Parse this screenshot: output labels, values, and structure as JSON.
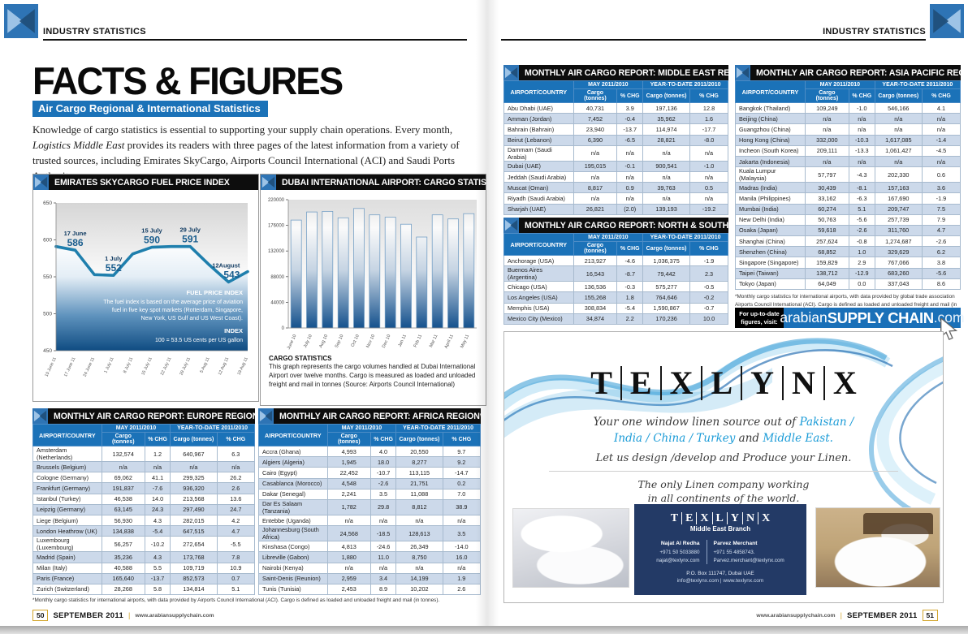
{
  "header": {
    "left": "INDUSTRY STATISTICS",
    "right": "INDUSTRY STATISTICS"
  },
  "page_title": "FACTS & FIGURES",
  "page_subtitle": "Air Cargo Regional & International Statistics",
  "intro_segments": [
    {
      "t": "Knowledge of cargo statistics is essential to supporting your supply chain operations. Every month, ",
      "c": "n"
    },
    {
      "t": "Logistics Middle East",
      "c": "i"
    },
    {
      "t": " provides its readers with three pages of the latest information from a variety of trusted sources, including Emirates SkyCargo, Airports Council International (ACI) and Saudi Ports Authority.",
      "c": "n"
    }
  ],
  "chart_data": [
    {
      "type": "line",
      "title": "EMIRATES SKYCARGO FUEL PRICE INDEX",
      "x": [
        "10 June 11",
        "17 June 11",
        "24 June 11",
        "1 July 11",
        "8 July 11",
        "15 July 11",
        "22 July 11",
        "29 July 11",
        "5 Aug 11",
        "12 Aug 11",
        "19 Aug 11"
      ],
      "values": [
        591,
        586,
        553,
        552,
        581,
        590,
        591,
        591,
        566,
        543,
        557
      ],
      "ylim": [
        450,
        650
      ],
      "yticks": [
        450,
        500,
        550,
        600,
        650
      ],
      "point_labels": [
        {
          "idx": 1,
          "date": "17 June",
          "value": "586"
        },
        {
          "idx": 3,
          "date": "1 July",
          "value": "552"
        },
        {
          "idx": 5,
          "date": "15 July",
          "value": "590"
        },
        {
          "idx": 7,
          "date": "29 July",
          "value": "591"
        },
        {
          "idx": 9,
          "date": "12August",
          "value": "543"
        }
      ],
      "note_heading": "FUEL PRICE INDEX",
      "note_lines": [
        "The fuel index is based on the average price of aviation",
        "fuel in five key spot markets (Rotterdam, Singapore,",
        "New York, US Gulf and US West Coast)."
      ],
      "index_heading": "INDEX",
      "index_line": "100 = 53.5 US cents per US gallon"
    },
    {
      "type": "bar",
      "title": "DUBAI INTERNATIONAL AIRPORT: CARGO STATISTICS",
      "categories": [
        "June 10",
        "July 10",
        "Aug 10",
        "Sep 10",
        "Oct 10",
        "Nov 10",
        "Dec 10",
        "Jan 11",
        "Feb 11",
        "Mar 11",
        "April 11",
        "May 11"
      ],
      "values": [
        185000,
        199000,
        200000,
        189000,
        205000,
        194000,
        190000,
        178000,
        156000,
        194000,
        187000,
        196000
      ],
      "ylim": [
        0,
        220000
      ],
      "yticks": [
        0,
        44000,
        88000,
        132000,
        176000,
        220000
      ],
      "caption_heading": "CARGO STATISTICS",
      "caption": "This graph represents the cargo volumes handled at Dubai International Airport over twelve months. Cargo is measured as loaded and unloaded freight and mail in tonnes (Source: Airports Council International)"
    }
  ],
  "tables": {
    "europe": {
      "title": "MONTHLY AIR CARGO REPORT: EUROPE REGION*",
      "name_header": "AIRPORT/COUNTRY",
      "group_headers": [
        "MAY 2011/2010",
        "YEAR-TO-DATE 2011/2010"
      ],
      "sub_headers": [
        "Cargo (tonnes)",
        "% CHG",
        "Cargo (tonnes)",
        "% CHG"
      ],
      "rows": [
        [
          "Amsterdam (Netherlands)",
          "132,574",
          "1.2",
          "640,967",
          "6.3"
        ],
        [
          "Brussels (Belgium)",
          "n/a",
          "n/a",
          "n/a",
          "n/a"
        ],
        [
          "Cologne (Germany)",
          "69,062",
          "41.1",
          "299,325",
          "26.2"
        ],
        [
          "Frankfurt (Germany)",
          "191,837",
          "-7.6",
          "936,320",
          "2.6"
        ],
        [
          "Istanbul (Turkey)",
          "46,538",
          "14.0",
          "213,568",
          "13.6"
        ],
        [
          "Leipzig (Germany)",
          "63,145",
          "24.3",
          "297,490",
          "24.7"
        ],
        [
          "Liege (Belgium)",
          "56,930",
          "4.3",
          "282,015",
          "4.2"
        ],
        [
          "London Heathrow (UK)",
          "134,838",
          "-5.4",
          "647,515",
          "4.7"
        ],
        [
          "Luxembourg (Luxembourg)",
          "56,257",
          "-10.2",
          "272,654",
          "-5.5"
        ],
        [
          "Madrid (Spain)",
          "35,236",
          "4.3",
          "173,768",
          "7.8"
        ],
        [
          "Milan (Italy)",
          "40,588",
          "5.5",
          "109,719",
          "10.9"
        ],
        [
          "Paris (France)",
          "165,640",
          "-13.7",
          "852,573",
          "0.7"
        ],
        [
          "Zurich (Switzerland)",
          "28,268",
          "5.8",
          "134,814",
          "5.1"
        ]
      ]
    },
    "africa": {
      "title": "MONTHLY AIR CARGO REPORT: AFRICA REGION*",
      "name_header": "AIRPORT/COUNTRY",
      "group_headers": [
        "MAY 2011/2010",
        "YEAR-TO-DATE 2011/2010"
      ],
      "sub_headers": [
        "Cargo (tonnes)",
        "% CHG",
        "Cargo (tonnes)",
        "% CHG"
      ],
      "rows": [
        [
          "Accra (Ghana)",
          "4,993",
          "4.0",
          "20,550",
          "9.7"
        ],
        [
          "Algiers (Algeria)",
          "1,945",
          "18.0",
          "8,277",
          "9.2"
        ],
        [
          "Cairo (Egypt)",
          "22,452",
          "-10.7",
          "113,115",
          "-14.7"
        ],
        [
          "Casablanca (Morocco)",
          "4,548",
          "-2.6",
          "21,751",
          "0.2"
        ],
        [
          "Dakar (Senegal)",
          "2,241",
          "3.5",
          "11,088",
          "7.0"
        ],
        [
          "Dar Es Salaam (Tanzania)",
          "1,782",
          "29.8",
          "8,812",
          "38.9"
        ],
        [
          "Entebbe (Uganda)",
          "n/a",
          "n/a",
          "n/a",
          "n/a"
        ],
        [
          "Johannesburg (South Africa)",
          "24,568",
          "-18.5",
          "128,613",
          "3.5"
        ],
        [
          "Kinshasa (Congo)",
          "4,813",
          "-24.6",
          "26,349",
          "-14.0"
        ],
        [
          "Libreville (Gabon)",
          "1,880",
          "11.0",
          "8,750",
          "16.0"
        ],
        [
          "Nairobi (Kenya)",
          "n/a",
          "n/a",
          "n/a",
          "n/a"
        ],
        [
          "Saint-Denis (Reunion)",
          "2,959",
          "3.4",
          "14,199",
          "1.9"
        ],
        [
          "Tunis (Tunisia)",
          "2,453",
          "8.9",
          "10,202",
          "2.6"
        ]
      ]
    },
    "middle_east": {
      "title": "MONTHLY AIR CARGO REPORT: MIDDLE EAST REGION*",
      "name_header": "AIRPORT/COUNTRY",
      "group_headers": [
        "MAY 2011/2010",
        "YEAR-TO-DATE 2011/2010"
      ],
      "sub_headers": [
        "Cargo (tonnes)",
        "% CHG",
        "Cargo (tonnes)",
        "% CHG"
      ],
      "rows": [
        [
          "Abu Dhabi (UAE)",
          "40,731",
          "3.9",
          "197,136",
          "12.8"
        ],
        [
          "Amman (Jordan)",
          "7,452",
          "-0.4",
          "35,962",
          "1.6"
        ],
        [
          "Bahrain (Bahrain)",
          "23,940",
          "-13.7",
          "114,974",
          "-17.7"
        ],
        [
          "Beirut (Lebanon)",
          "6,390",
          "-6.5",
          "28,821",
          "-8.0"
        ],
        [
          "Dammam (Saudi Arabia)",
          "n/a",
          "n/a",
          "n/a",
          "n/a"
        ],
        [
          "Dubai (UAE)",
          "195,015",
          "-0.1",
          "900,541",
          "-1.0"
        ],
        [
          "Jeddah (Saudi Arabia)",
          "n/a",
          "n/a",
          "n/a",
          "n/a"
        ],
        [
          "Muscat (Oman)",
          "8,817",
          "0.9",
          "39,763",
          "0.5"
        ],
        [
          "Riyadh (Saudi Arabia)",
          "n/a",
          "n/a",
          "n/a",
          "n/a"
        ],
        [
          "Sharjah (UAE)",
          "26,821",
          "(2.0)",
          "139,193",
          "-19.2"
        ]
      ]
    },
    "americas": {
      "title": "MONTHLY AIR CARGO REPORT: NORTH & SOUTH AMERICA*",
      "name_header": "AIRPORT/COUNTRY",
      "group_headers": [
        "MAY 2011/2010",
        "YEAR-TO-DATE 2011/2010"
      ],
      "sub_headers": [
        "Cargo (tonnes)",
        "% CHG",
        "Cargo (tonnes)",
        "% CHG"
      ],
      "rows": [
        [
          "Anchorage (USA)",
          "213,927",
          "-4.6",
          "1,036,375",
          "-1.9"
        ],
        [
          "Buenos Aires (Argentina)",
          "16,543",
          "-8.7",
          "79,442",
          "2.3"
        ],
        [
          "Chicago (USA)",
          "136,536",
          "-0.3",
          "575,277",
          "-0.5"
        ],
        [
          "Los Angeles (USA)",
          "155,268",
          "1.8",
          "764,646",
          "-0.2"
        ],
        [
          "Memphis (USA)",
          "308,834",
          "-5.4",
          "1,590,867",
          "-0.7"
        ],
        [
          "Mexico City (Mexico)",
          "34,874",
          "2.2",
          "170,236",
          "10.0"
        ]
      ]
    },
    "asia_pacific": {
      "title": "MONTHLY AIR CARGO REPORT: ASIA PACIFIC REGION*",
      "name_header": "AIRPORT/COUNTRY",
      "group_headers": [
        "MAY 2011/2010",
        "YEAR-TO-DATE 2011/2010"
      ],
      "sub_headers": [
        "Cargo (tonnes)",
        "% CHG",
        "Cargo (tonnes)",
        "% CHG"
      ],
      "rows": [
        [
          "Bangkok (Thailand)",
          "109,249",
          "-1.0",
          "546,166",
          "4.1"
        ],
        [
          "Beijing (China)",
          "n/a",
          "n/a",
          "n/a",
          "n/a"
        ],
        [
          "Guangzhou (China)",
          "n/a",
          "n/a",
          "n/a",
          "n/a"
        ],
        [
          "Hong Kong (China)",
          "332,000",
          "-10.3",
          "1,617,085",
          "-1.4"
        ],
        [
          "Incheon (South Korea)",
          "209,111",
          "-13.3",
          "1,061,427",
          "-4.5"
        ],
        [
          "Jakarta (Indonesia)",
          "n/a",
          "n/a",
          "n/a",
          "n/a"
        ],
        [
          "Kuala Lumpur (Malaysia)",
          "57,797",
          "-4.3",
          "202,330",
          "0.6"
        ],
        [
          "Madras (India)",
          "30,439",
          "-8.1",
          "157,163",
          "3.6"
        ],
        [
          "Manila (Philippines)",
          "33,162",
          "-6.3",
          "167,690",
          "-1.9"
        ],
        [
          "Mumbai (India)",
          "60,274",
          "5.1",
          "209,747",
          "7.5"
        ],
        [
          "New Delhi (India)",
          "50,763",
          "-5.6",
          "257,739",
          "7.9"
        ],
        [
          "Osaka (Japan)",
          "59,618",
          "-2.6",
          "311,760",
          "4.7"
        ],
        [
          "Shanghai (China)",
          "257,624",
          "-0.8",
          "1,274,687",
          "-2.6"
        ],
        [
          "Shenzhen (China)",
          "68,852",
          "1.0",
          "329,629",
          "6.2"
        ],
        [
          "Singapore (Singapore)",
          "159,829",
          "2.9",
          "767,066",
          "3.8"
        ],
        [
          "Taipei (Taiwan)",
          "138,712",
          "-12.9",
          "683,260",
          "-5.6"
        ],
        [
          "Tokyo (Japan)",
          "64,049",
          "0.0",
          "337,043",
          "8.6"
        ]
      ]
    }
  },
  "footnotes": {
    "left_page": "*Monthly cargo statistics for international airports, with data provided by Airports Council International (ACI). Cargo is defined as loaded and unloaded freight and mail (in tonnes).",
    "asia_line1": "*Monthly cargo statistics for international airports, with data provided by global trade association",
    "asia_line2": "Airports Council International (ACI). Cargo is defined as loaded and unloaded freight and mail (in tonnes)."
  },
  "banner": {
    "prefix_line1": "For up-to-date",
    "prefix_line2": "figures, visit:",
    "brand_normal": "arabian",
    "brand_bold": "SUPPLY CHAIN",
    "brand_suffix": ".com"
  },
  "ad": {
    "logo_letters": [
      "T",
      "E",
      "X",
      "L",
      "Y",
      "N",
      "X"
    ],
    "line1_segments": [
      {
        "t": "Your one window linen source out of ",
        "c": "n"
      },
      {
        "t": "Pakistan /",
        "c": "b"
      }
    ],
    "line2_segments": [
      {
        "t": "India / China / Turkey",
        "c": "b"
      },
      {
        "t": " and ",
        "c": "n"
      },
      {
        "t": "Middle East.",
        "c": "b"
      }
    ],
    "line3": "Let us design /develop and Produce your Linen.",
    "line4": "The only Linen company working",
    "line5": "in all continents of the world.",
    "branch": "Middle East Branch",
    "contact1": {
      "name": "Najat Al Redha",
      "phone": "+971 50 5033880",
      "email": "najat@texlynx.com"
    },
    "contact2": {
      "name": "Parvez Merchant",
      "phone": "+971 55 4858743.",
      "email": "Parvez.merchant@texlynx.com"
    },
    "address": "P.O. Box 111747, Dubai UAE",
    "web": "info@texlynx.com  |  www.texlynx.com"
  },
  "footer": {
    "left_page_num": "50",
    "right_page_num": "51",
    "issue": "SEPTEMBER 2011",
    "site": "www.arabiansupplychain.com"
  }
}
